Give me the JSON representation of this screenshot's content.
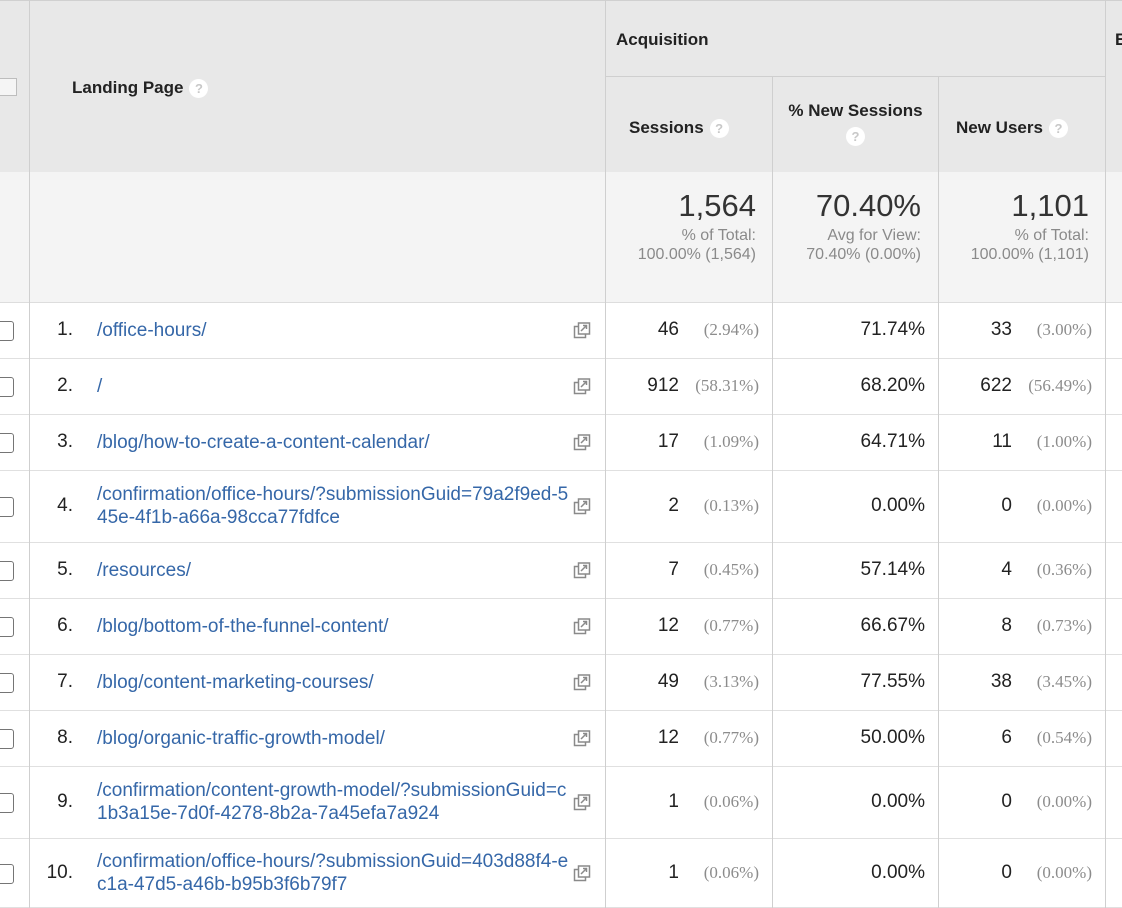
{
  "header": {
    "landing_page": "Landing Page",
    "acquisition": "Acquisition",
    "sessions": "Sessions",
    "new_sessions": "% New Sessions",
    "new_users": "New Users",
    "next_group_partial": "E",
    "help_glyph": "?"
  },
  "totals": {
    "sessions": {
      "value": "1,564",
      "line1": "% of Total:",
      "line2": "100.00% (1,564)"
    },
    "new_sessions": {
      "value": "70.40%",
      "line1": "Avg for View:",
      "line2": "70.40% (0.00%)"
    },
    "new_users": {
      "value": "1,101",
      "line1": "% of Total:",
      "line2": "100.00% (1,101)"
    }
  },
  "rows": [
    {
      "index": "1.",
      "page": "/office-hours/",
      "sessions": "46",
      "sessions_pct": "(2.94%)",
      "new_sessions": "71.74%",
      "new_users": "33",
      "new_users_pct": "(3.00%)"
    },
    {
      "index": "2.",
      "page": "/",
      "sessions": "912",
      "sessions_pct": "(58.31%)",
      "new_sessions": "68.20%",
      "new_users": "622",
      "new_users_pct": "(56.49%)"
    },
    {
      "index": "3.",
      "page": "/blog/how-to-create-a-content-calendar/",
      "sessions": "17",
      "sessions_pct": "(1.09%)",
      "new_sessions": "64.71%",
      "new_users": "11",
      "new_users_pct": "(1.00%)"
    },
    {
      "index": "4.",
      "page": "/confirmation/office-hours/?submissionGuid=79a2f9ed-545e-4f1b-a66a-98cca77fdfce",
      "sessions": "2",
      "sessions_pct": "(0.13%)",
      "new_sessions": "0.00%",
      "new_users": "0",
      "new_users_pct": "(0.00%)"
    },
    {
      "index": "5.",
      "page": "/resources/",
      "sessions": "7",
      "sessions_pct": "(0.45%)",
      "new_sessions": "57.14%",
      "new_users": "4",
      "new_users_pct": "(0.36%)"
    },
    {
      "index": "6.",
      "page": "/blog/bottom-of-the-funnel-content/",
      "sessions": "12",
      "sessions_pct": "(0.77%)",
      "new_sessions": "66.67%",
      "new_users": "8",
      "new_users_pct": "(0.73%)"
    },
    {
      "index": "7.",
      "page": "/blog/content-marketing-courses/",
      "sessions": "49",
      "sessions_pct": "(3.13%)",
      "new_sessions": "77.55%",
      "new_users": "38",
      "new_users_pct": "(3.45%)"
    },
    {
      "index": "8.",
      "page": "/blog/organic-traffic-growth-model/",
      "sessions": "12",
      "sessions_pct": "(0.77%)",
      "new_sessions": "50.00%",
      "new_users": "6",
      "new_users_pct": "(0.54%)"
    },
    {
      "index": "9.",
      "page": "/confirmation/content-growth-model/?submissionGuid=c1b3a15e-7d0f-4278-8b2a-7a45efa7a924",
      "sessions": "1",
      "sessions_pct": "(0.06%)",
      "new_sessions": "0.00%",
      "new_users": "0",
      "new_users_pct": "(0.00%)"
    },
    {
      "index": "10.",
      "page": "/confirmation/office-hours/?submissionGuid=403d88f4-ec1a-47d5-a46b-b95b3f6b79f7",
      "sessions": "1",
      "sessions_pct": "(0.06%)",
      "new_sessions": "0.00%",
      "new_users": "0",
      "new_users_pct": "(0.00%)"
    }
  ],
  "icons": {
    "row_action": "open-in-new-window-icon",
    "help": "help-circle-icon"
  }
}
